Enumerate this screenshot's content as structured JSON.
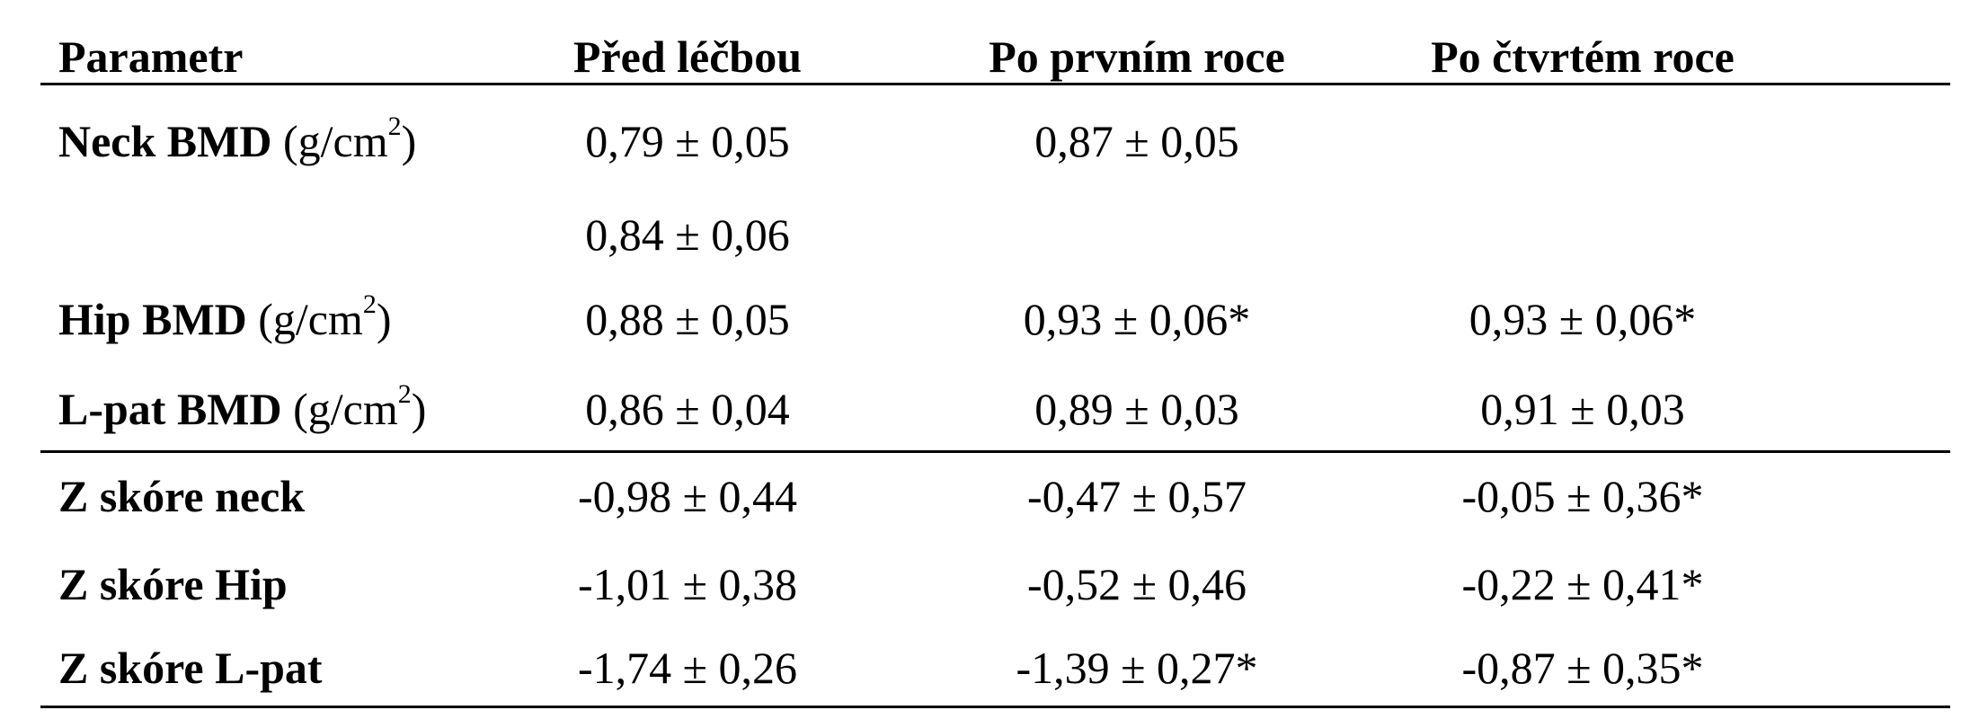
{
  "header": {
    "param": "Parametr",
    "col1": "Před léčbou",
    "col2": "Po prvním roce",
    "col3": "Po čtvrtém roce"
  },
  "rows": [
    {
      "name": "Neck BMD",
      "unit": "(g/cm",
      "sup": "2",
      "unit_close": ")",
      "c1": "0,79 ± 0,05",
      "c2": "0,87 ± 0,05",
      "c3": ""
    },
    {
      "name": "",
      "unit": "",
      "sup": "",
      "unit_close": "",
      "c1": "0,84 ± 0,06",
      "c2": "",
      "c3": ""
    },
    {
      "name": "Hip BMD",
      "unit": "(g/cm",
      "sup": "2",
      "unit_close": ")",
      "c1": "0,88 ± 0,05",
      "c2": "0,93 ± 0,06*",
      "c3": "0,93 ± 0,06*"
    },
    {
      "name": "L-pat BMD",
      "unit": "(g/cm",
      "sup": "2",
      "unit_close": ")",
      "c1": "0,86 ± 0,04",
      "c2": "0,89 ± 0,03",
      "c3": "0,91 ± 0,03"
    },
    {
      "name": "Z skóre neck",
      "unit": "",
      "sup": "",
      "unit_close": "",
      "c1": "-0,98 ± 0,44",
      "c2": "-0,47 ± 0,57",
      "c3": "-0,05 ± 0,36*"
    },
    {
      "name": "Z skóre Hip",
      "unit": "",
      "sup": "",
      "unit_close": "",
      "c1": "-1,01 ± 0,38",
      "c2": "-0,52 ± 0,46",
      "c3": "-0,22 ± 0,41*"
    },
    {
      "name": "Z skóre L-pat",
      "unit": "",
      "sup": "",
      "unit_close": "",
      "c1": "-1,74 ± 0,26",
      "c2": "-1,39 ± 0,27*",
      "c3": "-0,87 ± 0,35*"
    }
  ]
}
